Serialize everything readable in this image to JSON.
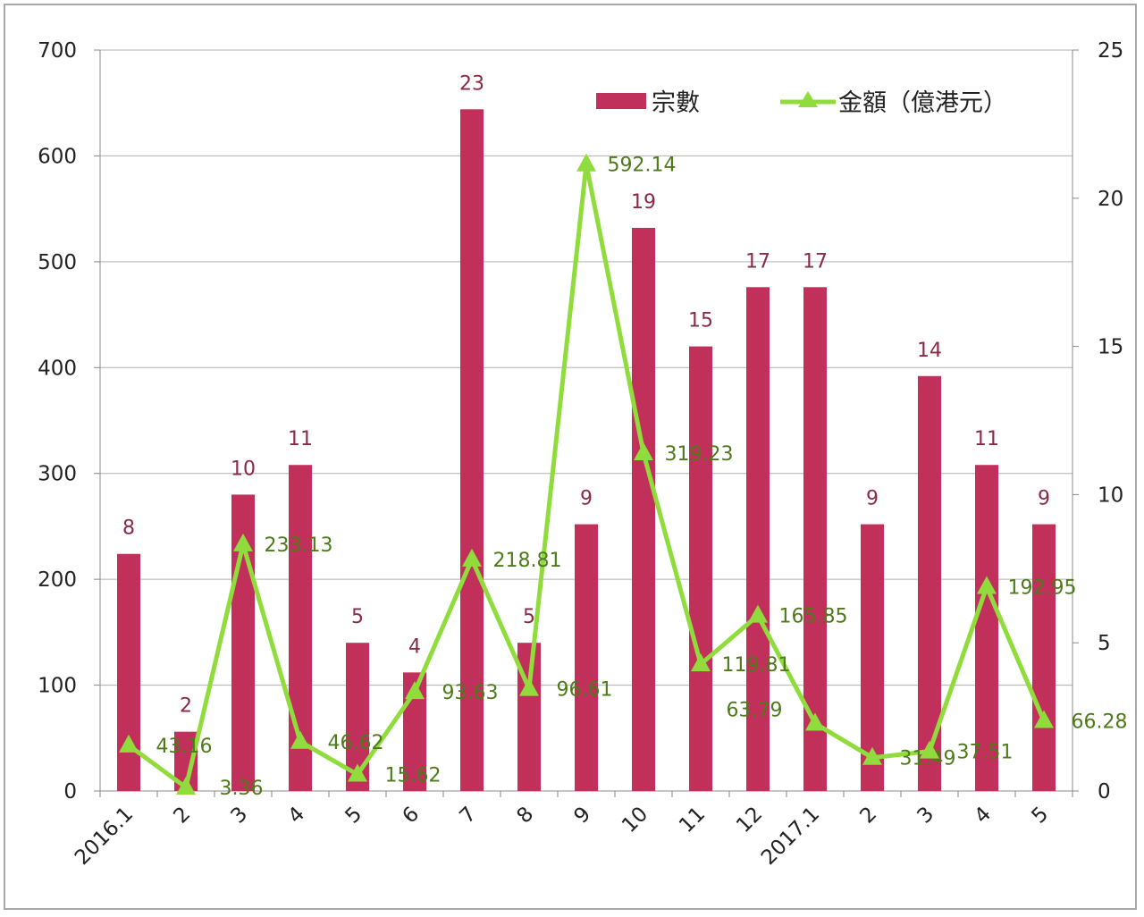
{
  "chart_data": {
    "type": "bar+line",
    "title": "",
    "categories": [
      "2016.1",
      "2",
      "3",
      "4",
      "5",
      "6",
      "7",
      "8",
      "9",
      "10",
      "11",
      "12",
      "2017.1",
      "2",
      "3",
      "4",
      "5"
    ],
    "series": [
      {
        "name": "宗數",
        "type": "bar",
        "axis": "right",
        "color": "#c0305a",
        "values": [
          8,
          2,
          10,
          11,
          5,
          4,
          23,
          5,
          9,
          19,
          15,
          17,
          17,
          9,
          14,
          11,
          9
        ]
      },
      {
        "name": "金額（億港元）",
        "type": "line",
        "axis": "left",
        "color": "#8fdc3c",
        "marker": "triangle",
        "values": [
          43.16,
          3.36,
          233.13,
          46.62,
          15.62,
          93.63,
          218.81,
          96.61,
          592.14,
          319.23,
          119.81,
          165.85,
          63.79,
          31.49,
          37.51,
          192.95,
          66.28
        ]
      }
    ],
    "left_axis": {
      "range": [
        0,
        700
      ],
      "ticks": [
        0,
        100,
        200,
        300,
        400,
        500,
        600,
        700
      ]
    },
    "right_axis": {
      "range": [
        0,
        25
      ],
      "ticks": [
        0,
        5,
        10,
        15,
        20,
        25
      ]
    },
    "grid": true,
    "legend": "top-right",
    "data_labels": true
  }
}
